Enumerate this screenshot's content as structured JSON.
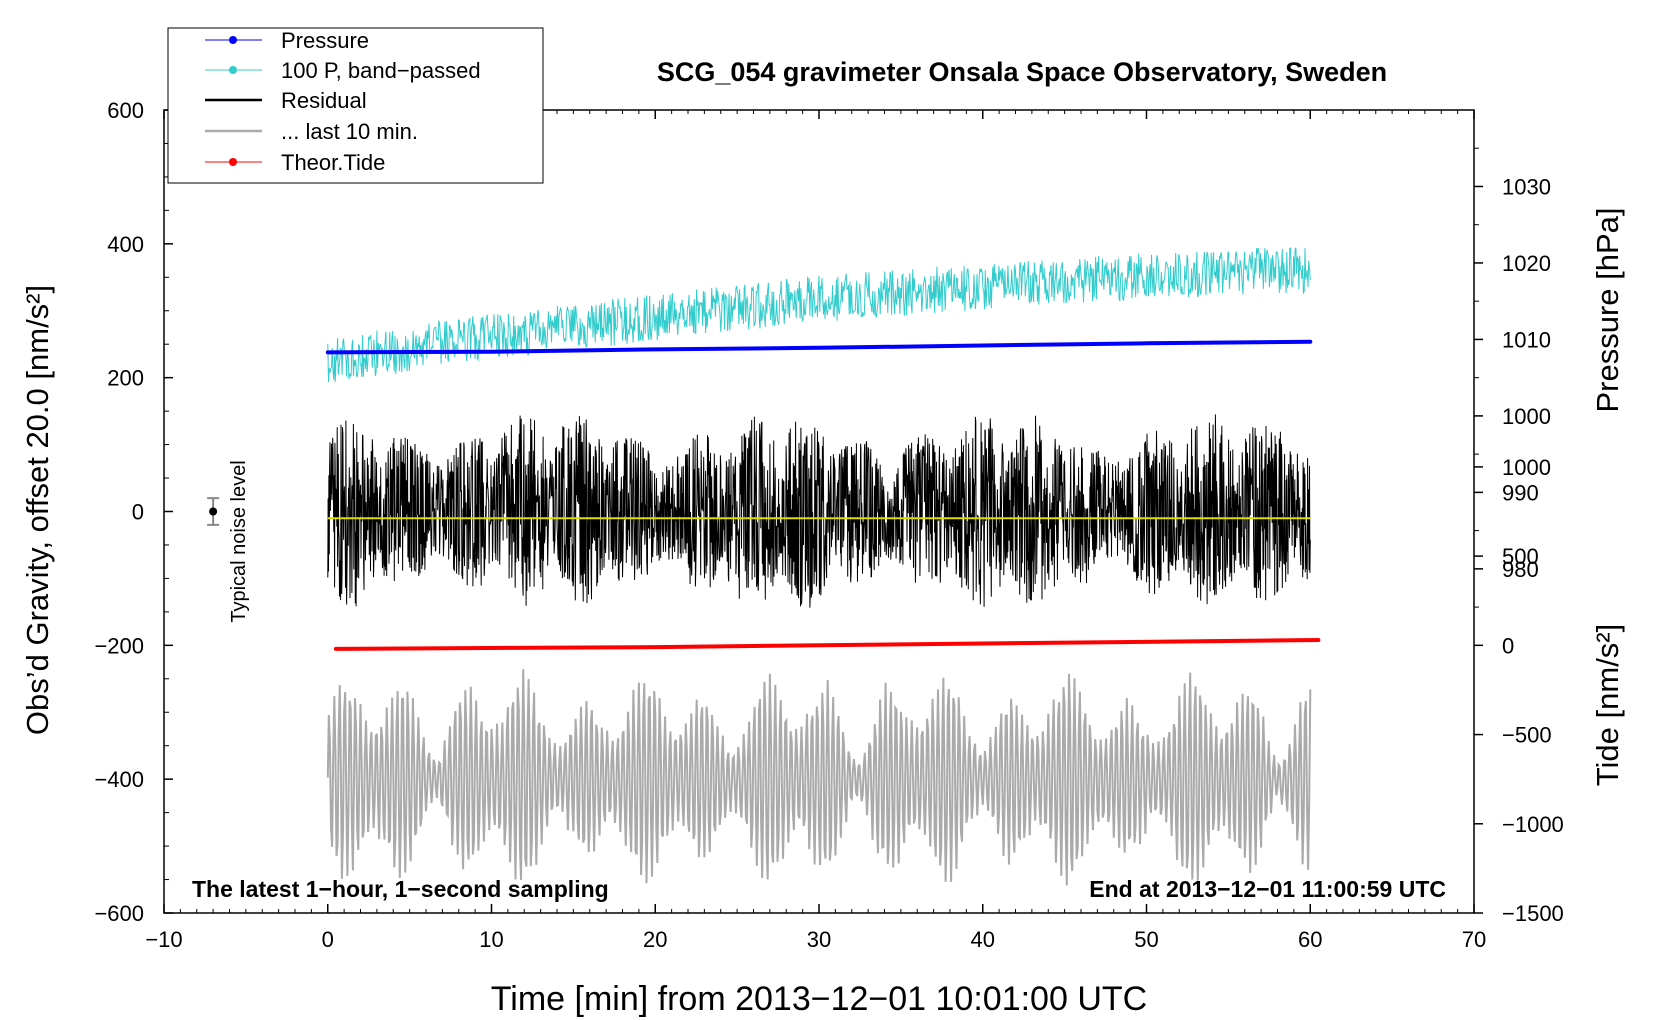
{
  "chart_data": {
    "type": "line",
    "title": "SCG_054 gravimeter Onsala Space Observatory, Sweden",
    "xlabel": "Time [min] from 2013−12−01 10:01:00 UTC",
    "ylabel_left": "Obs’d Gravity, offset 20.0 [nm/s²]",
    "ylabel_pressure": "Pressure [hPa]",
    "ylabel_tide": "Tide [nm/s²]",
    "xlim": [
      -10,
      70
    ],
    "ylim_left": [
      -600,
      600
    ],
    "ylim_pressure": [
      935,
      1040
    ],
    "ylim_tide": [
      -1500,
      3000
    ],
    "x_ticks": [
      -10,
      0,
      10,
      20,
      30,
      40,
      50,
      60,
      70
    ],
    "x_tick_labels": [
      "−10",
      "0",
      "10",
      "20",
      "30",
      "40",
      "50",
      "60",
      "70"
    ],
    "left_ticks": [
      600,
      400,
      200,
      0,
      -200,
      -400,
      -600
    ],
    "left_tick_labels": [
      "600",
      "400",
      "200",
      "0",
      "−200",
      "−400",
      "−600"
    ],
    "pressure_ticks": [
      1030,
      1020,
      1010,
      1000,
      990,
      980
    ],
    "pressure_tick_labels": [
      "1030",
      "1020",
      "1010",
      "1000",
      "990",
      "980"
    ],
    "tide_ticks": [
      1000,
      500,
      0,
      -500,
      -1000,
      -1500
    ],
    "tide_tick_labels": [
      "1000",
      "500",
      "0",
      "−500",
      "−1000",
      "−1500"
    ],
    "legend": {
      "placement": "top-left",
      "entries": [
        {
          "label": "Pressure",
          "color": "#0000ff",
          "marker": true
        },
        {
          "label": "100 P, band−passed",
          "color": "#33cccc",
          "marker": true
        },
        {
          "label": "Residual",
          "color": "#000000",
          "marker": false
        },
        {
          "label": "... last 10 min.",
          "color": "#aaaaaa",
          "marker": false
        },
        {
          "label": "Theor.Tide",
          "color": "#ff0000",
          "marker": true
        }
      ]
    },
    "series": [
      {
        "name": "Pressure",
        "axis": "pressure",
        "color": "#0000ff",
        "x": [
          0,
          10,
          20,
          30,
          40,
          50,
          60
        ],
        "values": [
          1008.3,
          1008.4,
          1008.7,
          1008.9,
          1009.2,
          1009.5,
          1009.7
        ]
      },
      {
        "name": "100 P, band−passed",
        "axis": "left",
        "color": "#33cccc",
        "x": [
          0,
          10,
          20,
          30,
          40,
          50,
          60
        ],
        "values": [
          225,
          262,
          290,
          318,
          336,
          352,
          362
        ],
        "noise_amplitude": 35
      },
      {
        "name": "Residual",
        "axis": "left",
        "color": "#000000",
        "x": [
          0,
          60
        ],
        "values": [
          0,
          0
        ],
        "noise_amplitude": 150
      },
      {
        "name": "... last 10 min.",
        "axis": "left",
        "color": "#aaaaaa",
        "x": [
          0,
          60
        ],
        "values": [
          -400,
          -400
        ],
        "noise_amplitude": 120
      },
      {
        "name": "Theor.Tide",
        "axis": "tide",
        "color": "#ff0000",
        "x": [
          0.5,
          20,
          40,
          60.5
        ],
        "values": [
          -20,
          -10,
          10,
          30
        ]
      },
      {
        "name": "Residual mean",
        "axis": "left",
        "color": "#dddd00",
        "x": [
          0,
          60
        ],
        "values": [
          -10,
          -10
        ]
      }
    ],
    "noise_marker": {
      "label": "Typical noise level",
      "x": -7,
      "y": 0,
      "error": 20
    },
    "annotation_left": "The latest 1−hour, 1−second sampling",
    "annotation_right": "End at 2013−12−01 11:00:59 UTC"
  }
}
